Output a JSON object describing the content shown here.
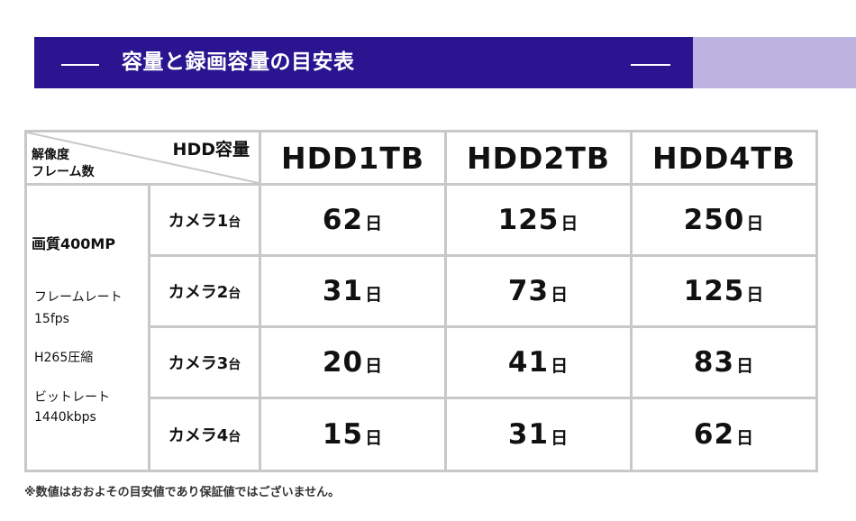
{
  "banner": {
    "title": "容量と録画容量の目安表",
    "colors": {
      "primary": "#2a1490",
      "accent": "#bdb3e0"
    }
  },
  "table": {
    "corner_top": "HDD容量",
    "corner_bottom_line1": "解像度",
    "corner_bottom_line2": "フレーム数",
    "hdd_headers": [
      "HDD1TB",
      "HDD2TB",
      "HDD4TB"
    ],
    "spec": {
      "resolution": "画質400MP",
      "frame_label": "フレームレート",
      "frame_value": "15fps",
      "codec": "H265圧縮",
      "bitrate_label": "ビットレート",
      "bitrate_value": "1440kbps"
    },
    "unit": "日",
    "rows": [
      {
        "camera": "カメラ1",
        "camera_unit": "台",
        "values": [
          "62",
          "125",
          "250"
        ]
      },
      {
        "camera": "カメラ2",
        "camera_unit": "台",
        "values": [
          "31",
          "73",
          "125"
        ]
      },
      {
        "camera": "カメラ3",
        "camera_unit": "台",
        "values": [
          "20",
          "41",
          "83"
        ]
      },
      {
        "camera": "カメラ4",
        "camera_unit": "台",
        "values": [
          "15",
          "31",
          "62"
        ]
      }
    ]
  },
  "footnote": "※数値はおおよその目安値であり保証値ではございません。"
}
